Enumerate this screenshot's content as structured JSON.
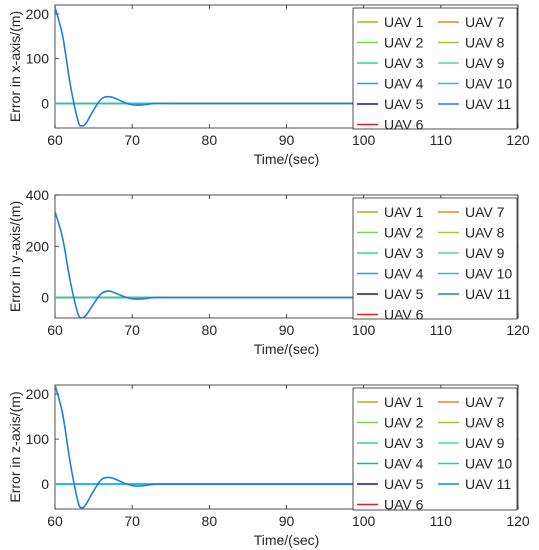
{
  "chart_data": [
    {
      "type": "line",
      "xlabel": "Time/(sec)",
      "ylabel": "Error in x-axis/(m)",
      "xlim": [
        60,
        120
      ],
      "ylim": [
        -55,
        220
      ],
      "xticks": [
        "60",
        "70",
        "80",
        "90",
        "100",
        "110",
        "120"
      ],
      "yticks": [
        "0",
        "100",
        "200"
      ],
      "legend_position": "right",
      "series": [
        {
          "name": "UAV 1",
          "color": "#b8ad1c",
          "x": [
            60,
            120
          ],
          "y": [
            0,
            0
          ]
        },
        {
          "name": "UAV 2",
          "color": "#7fd15a",
          "x": [
            60,
            120
          ],
          "y": [
            0,
            0
          ]
        },
        {
          "name": "UAV 3",
          "color": "#2ed3a6",
          "x": [
            60,
            120
          ],
          "y": [
            0,
            0
          ]
        },
        {
          "name": "UAV 4",
          "color": "#16a8ec",
          "x": [
            60,
            120
          ],
          "y": [
            0,
            0
          ]
        },
        {
          "name": "UAV 5",
          "color": "#1d12a8",
          "x": [
            60,
            120
          ],
          "y": [
            0,
            0
          ]
        },
        {
          "name": "UAV 6",
          "color": "#e02020",
          "x": [
            60,
            120
          ],
          "y": [
            0,
            0
          ]
        },
        {
          "name": "UAV 7",
          "color": "#e08a1a",
          "x": [
            60,
            120
          ],
          "y": [
            0,
            0
          ]
        },
        {
          "name": "UAV 8",
          "color": "#a6c63a",
          "x": [
            60,
            120
          ],
          "y": [
            0,
            0
          ]
        },
        {
          "name": "UAV 9",
          "color": "#5ed69a",
          "x": [
            60,
            120
          ],
          "y": [
            0,
            0
          ]
        },
        {
          "name": "UAV 10",
          "color": "#1ec2da",
          "x": [
            60,
            120
          ],
          "y": [
            0,
            0
          ]
        },
        {
          "name": "UAV 11",
          "color": "#1f7fe0",
          "x": [
            60,
            61,
            62,
            63,
            63.5,
            64,
            65,
            66,
            67,
            68,
            69,
            70,
            71,
            72,
            73,
            75,
            80,
            90,
            100
          ],
          "y": [
            215,
            150,
            40,
            -40,
            -50,
            -45,
            -15,
            10,
            15,
            10,
            2,
            -3,
            -4,
            -2,
            0,
            0,
            0,
            0,
            0
          ]
        }
      ]
    },
    {
      "type": "line",
      "xlabel": "Time/(sec)",
      "ylabel": "Error in y-axis/(m)",
      "xlim": [
        60,
        120
      ],
      "ylim": [
        -80,
        400
      ],
      "xticks": [
        "60",
        "70",
        "80",
        "90",
        "100",
        "110",
        "120"
      ],
      "yticks": [
        "0",
        "200",
        "400"
      ],
      "legend_position": "right",
      "series": [
        {
          "name": "UAV 1",
          "color": "#b8ad1c",
          "x": [
            60,
            120
          ],
          "y": [
            0,
            0
          ]
        },
        {
          "name": "UAV 2",
          "color": "#7fd15a",
          "x": [
            60,
            120
          ],
          "y": [
            0,
            0
          ]
        },
        {
          "name": "UAV 3",
          "color": "#2ed3a6",
          "x": [
            60,
            120
          ],
          "y": [
            0,
            0
          ]
        },
        {
          "name": "UAV 4",
          "color": "#16a8ec",
          "x": [
            60,
            120
          ],
          "y": [
            0,
            0
          ]
        },
        {
          "name": "UAV 5",
          "color": "#1d12a8",
          "x": [
            60,
            120
          ],
          "y": [
            0,
            0
          ]
        },
        {
          "name": "UAV 6",
          "color": "#e02020",
          "x": [
            60,
            120
          ],
          "y": [
            0,
            0
          ]
        },
        {
          "name": "UAV 7",
          "color": "#e08a1a",
          "x": [
            60,
            120
          ],
          "y": [
            0,
            0
          ]
        },
        {
          "name": "UAV 8",
          "color": "#a6c63a",
          "x": [
            60,
            120
          ],
          "y": [
            0,
            0
          ]
        },
        {
          "name": "UAV 9",
          "color": "#5ed69a",
          "x": [
            60,
            120
          ],
          "y": [
            0,
            0
          ]
        },
        {
          "name": "UAV 10",
          "color": "#1ec2da",
          "x": [
            60,
            120
          ],
          "y": [
            0,
            0
          ]
        },
        {
          "name": "UAV 11",
          "color": "#1f7fe0",
          "x": [
            60,
            61,
            62,
            63,
            63.5,
            64,
            65,
            66,
            67,
            68,
            69,
            70,
            71,
            72,
            73,
            75,
            80,
            90,
            100
          ],
          "y": [
            335,
            230,
            60,
            -65,
            -78,
            -70,
            -25,
            15,
            25,
            15,
            3,
            -5,
            -6,
            -3,
            0,
            0,
            0,
            0,
            0
          ]
        }
      ]
    },
    {
      "type": "line",
      "xlabel": "Time/(sec)",
      "ylabel": "Error in z-axis/(m)",
      "xlim": [
        60,
        120
      ],
      "ylim": [
        -55,
        220
      ],
      "xticks": [
        "60",
        "70",
        "80",
        "90",
        "100",
        "110",
        "120"
      ],
      "yticks": [
        "0",
        "100",
        "200"
      ],
      "legend_position": "right",
      "series": [
        {
          "name": "UAV 1",
          "color": "#b8ad1c",
          "x": [
            60,
            120
          ],
          "y": [
            0,
            0
          ]
        },
        {
          "name": "UAV 2",
          "color": "#7fd15a",
          "x": [
            60,
            120
          ],
          "y": [
            0,
            0
          ]
        },
        {
          "name": "UAV 3",
          "color": "#2ed3a6",
          "x": [
            60,
            120
          ],
          "y": [
            0,
            0
          ]
        },
        {
          "name": "UAV 4",
          "color": "#16a8ec",
          "x": [
            60,
            120
          ],
          "y": [
            0,
            0
          ]
        },
        {
          "name": "UAV 5",
          "color": "#1d12a8",
          "x": [
            60,
            120
          ],
          "y": [
            0,
            0
          ]
        },
        {
          "name": "UAV 6",
          "color": "#e02020",
          "x": [
            60,
            120
          ],
          "y": [
            0,
            0
          ]
        },
        {
          "name": "UAV 7",
          "color": "#e08a1a",
          "x": [
            60,
            120
          ],
          "y": [
            0,
            0
          ]
        },
        {
          "name": "UAV 8",
          "color": "#a6c63a",
          "x": [
            60,
            120
          ],
          "y": [
            0,
            0
          ]
        },
        {
          "name": "UAV 9",
          "color": "#5ed69a",
          "x": [
            60,
            120
          ],
          "y": [
            0,
            0
          ]
        },
        {
          "name": "UAV 10",
          "color": "#1ec2da",
          "x": [
            60,
            120
          ],
          "y": [
            0,
            0
          ]
        },
        {
          "name": "UAV 11",
          "color": "#1f7fe0",
          "x": [
            60,
            61,
            62,
            63,
            63.5,
            64,
            65,
            66,
            67,
            68,
            69,
            70,
            71,
            72,
            73,
            75,
            80,
            90,
            100
          ],
          "y": [
            220,
            155,
            45,
            -40,
            -52,
            -45,
            -15,
            10,
            15,
            10,
            2,
            -3,
            -4,
            -2,
            0,
            0,
            0,
            0,
            0
          ]
        }
      ]
    }
  ]
}
